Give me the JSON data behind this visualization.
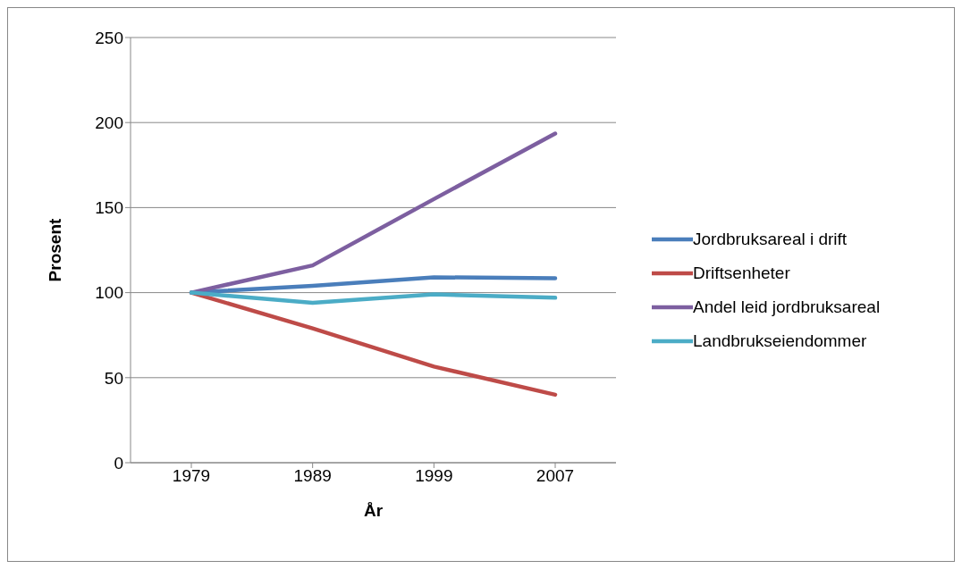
{
  "chart_data": {
    "type": "line",
    "xlabel": "År",
    "ylabel": "Prosent",
    "categories": [
      "1979",
      "1989",
      "1999",
      "2007"
    ],
    "series": [
      {
        "name": "Jordbruksareal i drift",
        "color": "#4a7ebb",
        "values": [
          100,
          104,
          109,
          108.5
        ]
      },
      {
        "name": "Driftsenheter",
        "color": "#be4b48",
        "values": [
          100,
          79,
          56.5,
          40
        ]
      },
      {
        "name": "Andel leid jordbruksareal",
        "color": "#7d5fa0",
        "values": [
          100,
          116,
          155,
          193.5
        ]
      },
      {
        "name": "Landbrukseiendommer",
        "color": "#4bacc6",
        "values": [
          100,
          94,
          99,
          97
        ]
      }
    ],
    "ylim": [
      0,
      250
    ],
    "yticks": [
      0,
      50,
      100,
      150,
      200,
      250
    ],
    "grid": "y",
    "legend": "right",
    "marker": "none"
  }
}
